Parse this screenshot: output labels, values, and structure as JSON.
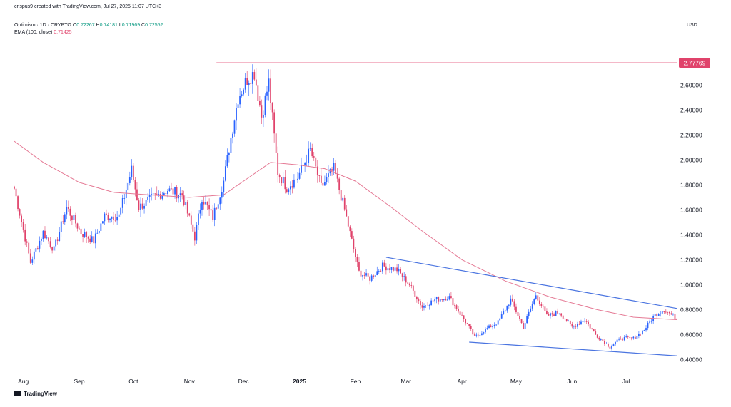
{
  "header": {
    "credit": "crispus9 created with TradingView.com, Jul 27, 2025 11:07 UTC+3",
    "symbol": "Optimism · 1D · CRYPTO",
    "ohlc": {
      "o_label": "O",
      "o": "0.72267",
      "h_label": "H",
      "h": "0.74181",
      "l_label": "L",
      "l": "0.71969",
      "c_label": "C",
      "c": "0.72552"
    },
    "ema_label": "EMA (100, close)",
    "ema_value": "0.71425",
    "currency": "USD"
  },
  "footer": {
    "brand": "TradingView"
  },
  "colors": {
    "up": "#2962ff",
    "down": "#e0436b",
    "ema": "#e57a95",
    "trend": "#4a74e0",
    "hline": "#e0436b",
    "dotted": "#9aa4b8"
  },
  "chart_data": {
    "type": "candlestick",
    "title": "Optimism · 1D · CRYPTO",
    "ylim": [
      0.3,
      2.95
    ],
    "y_ticks": [
      "2.60000",
      "2.40000",
      "2.20000",
      "2.00000",
      "1.80000",
      "1.60000",
      "1.40000",
      "1.20000",
      "1.00000",
      "0.80000",
      "0.60000",
      "0.40000"
    ],
    "x_ticks": [
      "Aug",
      "Sep",
      "Oct",
      "Nov",
      "Dec",
      "2025",
      "Feb",
      "Mar",
      "Apr",
      "May",
      "Jun",
      "Jul"
    ],
    "x_range": [
      "2024-07-27",
      "2025-07-29"
    ],
    "x_tick_dates": [
      "2024-08-01",
      "2024-09-01",
      "2024-10-01",
      "2024-11-01",
      "2024-12-01",
      "2025-01-01",
      "2025-02-01",
      "2025-03-01",
      "2025-04-01",
      "2025-05-01",
      "2025-06-01",
      "2025-07-01"
    ],
    "price_line": {
      "value": 2.77769,
      "label": "2.77769",
      "start_date": "2024-11-16"
    },
    "current_price_line": 0.72552,
    "series_points": [
      {
        "date": "2024-07-27",
        "close": 1.77
      },
      {
        "date": "2024-08-05",
        "close": 1.18
      },
      {
        "date": "2024-08-12",
        "close": 1.42
      },
      {
        "date": "2024-08-18",
        "close": 1.28
      },
      {
        "date": "2024-08-25",
        "close": 1.62
      },
      {
        "date": "2024-09-02",
        "close": 1.42
      },
      {
        "date": "2024-09-09",
        "close": 1.35
      },
      {
        "date": "2024-09-15",
        "close": 1.55
      },
      {
        "date": "2024-09-23",
        "close": 1.55
      },
      {
        "date": "2024-09-30",
        "close": 1.92
      },
      {
        "date": "2024-10-04",
        "close": 1.62
      },
      {
        "date": "2024-10-12",
        "close": 1.7
      },
      {
        "date": "2024-10-20",
        "close": 1.76
      },
      {
        "date": "2024-10-28",
        "close": 1.72
      },
      {
        "date": "2024-11-04",
        "close": 1.38
      },
      {
        "date": "2024-11-08",
        "close": 1.7
      },
      {
        "date": "2024-11-14",
        "close": 1.54
      },
      {
        "date": "2024-11-20",
        "close": 1.83
      },
      {
        "date": "2024-11-24",
        "close": 2.18
      },
      {
        "date": "2024-11-28",
        "close": 2.5
      },
      {
        "date": "2024-12-03",
        "close": 2.65
      },
      {
        "date": "2024-12-07",
        "close": 2.7
      },
      {
        "date": "2024-12-11",
        "close": 2.35
      },
      {
        "date": "2024-12-15",
        "close": 2.62
      },
      {
        "date": "2024-12-20",
        "close": 1.9
      },
      {
        "date": "2024-12-25",
        "close": 1.78
      },
      {
        "date": "2024-12-31",
        "close": 1.86
      },
      {
        "date": "2025-01-07",
        "close": 2.08
      },
      {
        "date": "2025-01-13",
        "close": 1.78
      },
      {
        "date": "2025-01-20",
        "close": 1.93
      },
      {
        "date": "2025-01-26",
        "close": 1.6
      },
      {
        "date": "2025-02-03",
        "close": 1.1
      },
      {
        "date": "2025-02-09",
        "close": 1.05
      },
      {
        "date": "2025-02-16",
        "close": 1.15
      },
      {
        "date": "2025-02-24",
        "close": 1.12
      },
      {
        "date": "2025-03-03",
        "close": 1.0
      },
      {
        "date": "2025-03-10",
        "close": 0.82
      },
      {
        "date": "2025-03-17",
        "close": 0.88
      },
      {
        "date": "2025-03-25",
        "close": 0.9
      },
      {
        "date": "2025-04-04",
        "close": 0.68
      },
      {
        "date": "2025-04-08",
        "close": 0.58
      },
      {
        "date": "2025-04-15",
        "close": 0.65
      },
      {
        "date": "2025-04-21",
        "close": 0.7
      },
      {
        "date": "2025-04-28",
        "close": 0.88
      },
      {
        "date": "2025-05-05",
        "close": 0.66
      },
      {
        "date": "2025-05-12",
        "close": 0.92
      },
      {
        "date": "2025-05-18",
        "close": 0.75
      },
      {
        "date": "2025-05-25",
        "close": 0.78
      },
      {
        "date": "2025-06-01",
        "close": 0.66
      },
      {
        "date": "2025-06-08",
        "close": 0.72
      },
      {
        "date": "2025-06-14",
        "close": 0.6
      },
      {
        "date": "2025-06-22",
        "close": 0.5
      },
      {
        "date": "2025-06-28",
        "close": 0.57
      },
      {
        "date": "2025-07-05",
        "close": 0.57
      },
      {
        "date": "2025-07-11",
        "close": 0.64
      },
      {
        "date": "2025-07-17",
        "close": 0.76
      },
      {
        "date": "2025-07-22",
        "close": 0.8
      },
      {
        "date": "2025-07-29",
        "close": 0.73
      }
    ],
    "ema_points": [
      {
        "date": "2024-07-27",
        "value": 2.15
      },
      {
        "date": "2024-08-12",
        "value": 1.98
      },
      {
        "date": "2024-09-01",
        "value": 1.82
      },
      {
        "date": "2024-09-20",
        "value": 1.74
      },
      {
        "date": "2024-10-10",
        "value": 1.72
      },
      {
        "date": "2024-11-01",
        "value": 1.7
      },
      {
        "date": "2024-11-20",
        "value": 1.72
      },
      {
        "date": "2024-12-03",
        "value": 1.85
      },
      {
        "date": "2024-12-16",
        "value": 1.98
      },
      {
        "date": "2024-12-31",
        "value": 1.96
      },
      {
        "date": "2025-01-15",
        "value": 1.93
      },
      {
        "date": "2025-02-01",
        "value": 1.83
      },
      {
        "date": "2025-02-20",
        "value": 1.63
      },
      {
        "date": "2025-03-10",
        "value": 1.43
      },
      {
        "date": "2025-04-01",
        "value": 1.2
      },
      {
        "date": "2025-04-25",
        "value": 1.03
      },
      {
        "date": "2025-05-20",
        "value": 0.9
      },
      {
        "date": "2025-06-15",
        "value": 0.8
      },
      {
        "date": "2025-07-05",
        "value": 0.74
      },
      {
        "date": "2025-07-29",
        "value": 0.72
      }
    ],
    "trendlines": [
      {
        "from": {
          "date": "2025-02-18",
          "value": 1.22
        },
        "to": {
          "date": "2025-07-29",
          "value": 0.81
        }
      },
      {
        "from": {
          "date": "2025-04-05",
          "value": 0.54
        },
        "to": {
          "date": "2025-07-29",
          "value": 0.43
        }
      }
    ]
  }
}
